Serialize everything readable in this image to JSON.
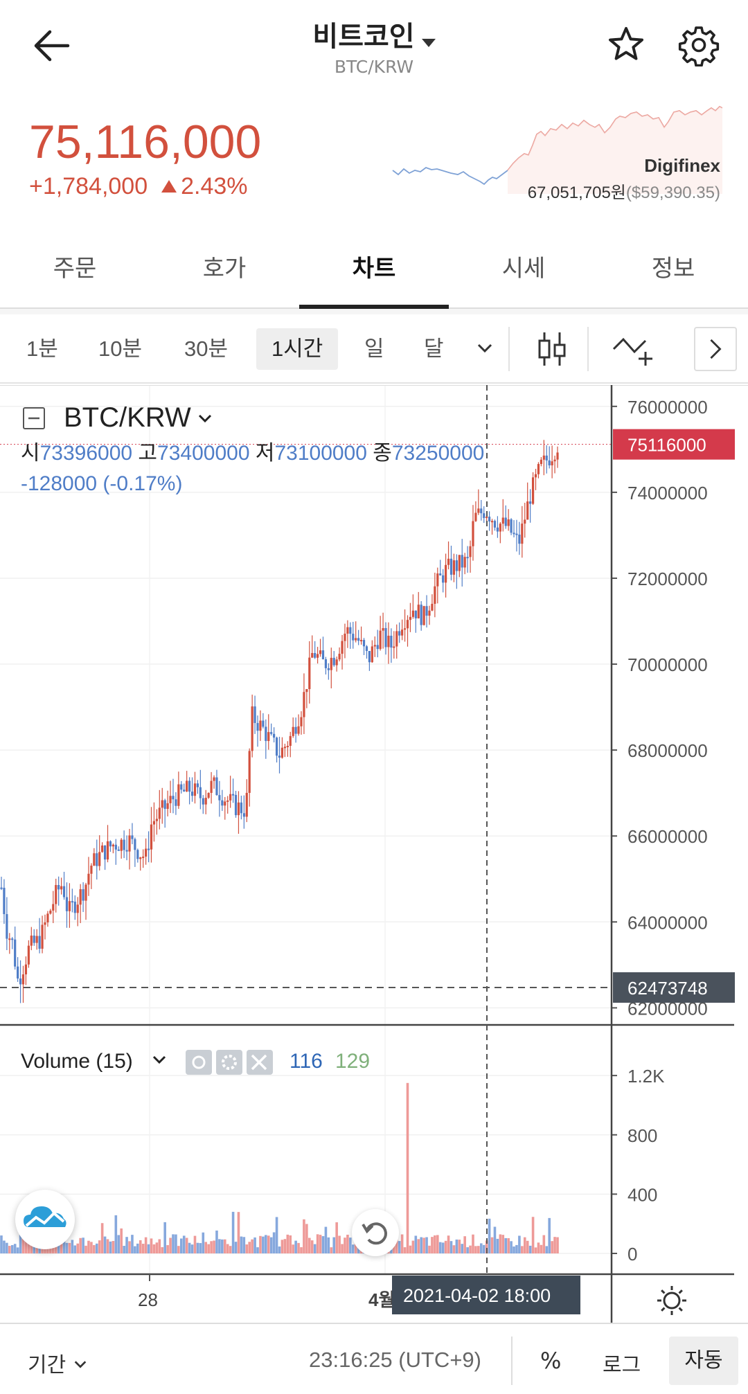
{
  "header": {
    "coin_name": "비트코인",
    "pair": "BTC/KRW"
  },
  "price": {
    "current": "75,116,000",
    "change": "+1,784,000",
    "change_pct": "2.43%",
    "up_color": "#d2503d",
    "down_color": "#4f7dc7"
  },
  "exchange": {
    "name": "Digifinex",
    "price_krw": "67,051,705원",
    "price_usd": "($59,390.35)"
  },
  "tabs": [
    {
      "label": "주문",
      "active": false
    },
    {
      "label": "호가",
      "active": false
    },
    {
      "label": "차트",
      "active": true
    },
    {
      "label": "시세",
      "active": false
    },
    {
      "label": "정보",
      "active": false
    }
  ],
  "intervals": [
    {
      "label": "1분",
      "selected": false
    },
    {
      "label": "10분",
      "selected": false
    },
    {
      "label": "30분",
      "selected": false
    },
    {
      "label": "1시간",
      "selected": true
    },
    {
      "label": "일",
      "selected": false
    },
    {
      "label": "달",
      "selected": false
    }
  ],
  "chart": {
    "symbol": "BTC/KRW",
    "ohlc": {
      "open_label": "시",
      "open": "73396000",
      "high_label": "고",
      "high": "73400000",
      "low_label": "저",
      "low": "73100000",
      "close_label": "종",
      "close": "73250000",
      "change": "-128000 (-0.17%)"
    },
    "current_price_tag": "75116000",
    "low_marker_tag": "62473748",
    "volume": {
      "label": "Volume (15)",
      "v1": "116",
      "v2": "129",
      "v1_color": "#2e66b5",
      "v2_color": "#7fb07a"
    },
    "crosshair_label": "2021-04-02   18:00",
    "x_labels": [
      "28",
      "4월"
    ]
  },
  "chart_data": {
    "type": "candlestick",
    "title": "BTC/KRW",
    "interval": "1시간",
    "y_ticks": [
      "76000000",
      "74000000",
      "72000000",
      "70000000",
      "68000000",
      "66000000",
      "64000000",
      "62000000"
    ],
    "ylim": [
      61700000,
      76400000
    ],
    "volume_ticks": [
      "1.2K",
      "800",
      "400",
      "0"
    ],
    "volume_ylim": [
      0,
      1280
    ],
    "x_tick_labels": [
      "28",
      "4월"
    ],
    "close_path": [
      [
        0,
        64800000
      ],
      [
        0.01,
        63800000
      ],
      [
        0.02,
        63500000
      ],
      [
        0.03,
        62600000
      ],
      [
        0.04,
        63000000
      ],
      [
        0.05,
        63400000
      ],
      [
        0.07,
        63600000
      ],
      [
        0.08,
        64000000
      ],
      [
        0.1,
        64700000
      ],
      [
        0.11,
        64900000
      ],
      [
        0.12,
        64200000
      ],
      [
        0.13,
        64400000
      ],
      [
        0.15,
        64800000
      ],
      [
        0.16,
        65300000
      ],
      [
        0.18,
        65600000
      ],
      [
        0.2,
        65800000
      ],
      [
        0.23,
        65900000
      ],
      [
        0.25,
        65600000
      ],
      [
        0.26,
        65500000
      ],
      [
        0.27,
        66300000
      ],
      [
        0.29,
        66600000
      ],
      [
        0.31,
        66900000
      ],
      [
        0.34,
        67100000
      ],
      [
        0.36,
        66900000
      ],
      [
        0.38,
        67200000
      ],
      [
        0.4,
        66900000
      ],
      [
        0.42,
        66700000
      ],
      [
        0.44,
        66600000
      ],
      [
        0.45,
        68800000
      ],
      [
        0.47,
        68500000
      ],
      [
        0.49,
        68100000
      ],
      [
        0.5,
        67900000
      ],
      [
        0.52,
        68300000
      ],
      [
        0.54,
        69000000
      ],
      [
        0.56,
        70300000
      ],
      [
        0.58,
        70000000
      ],
      [
        0.6,
        70200000
      ],
      [
        0.62,
        70800000
      ],
      [
        0.64,
        70600000
      ],
      [
        0.66,
        70100000
      ],
      [
        0.68,
        70700000
      ],
      [
        0.7,
        70400000
      ],
      [
        0.72,
        71000000
      ],
      [
        0.74,
        71300000
      ],
      [
        0.76,
        71100000
      ],
      [
        0.78,
        71800000
      ],
      [
        0.8,
        72200000
      ],
      [
        0.82,
        72300000
      ],
      [
        0.84,
        72400000
      ],
      [
        0.85,
        73400000
      ],
      [
        0.87,
        73600000
      ],
      [
        0.89,
        73300000
      ],
      [
        0.91,
        73200000
      ],
      [
        0.93,
        72800000
      ],
      [
        0.95,
        73900000
      ],
      [
        0.97,
        74600000
      ],
      [
        0.99,
        74900000
      ],
      [
        1,
        75116000
      ]
    ],
    "crosshair_x": "2021-04-02 18:00",
    "last_price": 75116000,
    "marker_low": 62473748,
    "volume_spike": {
      "position": 0.73,
      "value": 1150
    }
  },
  "bottom": {
    "period": "기간",
    "time": "23:16:25 (UTC+9)",
    "percent": "%",
    "log": "로그",
    "auto": "자동"
  },
  "colors": {
    "accent": "#d2503d",
    "tag_red": "#d43a4b",
    "tag_dark": "#4a525c",
    "crosshair": "#3e4a57"
  }
}
